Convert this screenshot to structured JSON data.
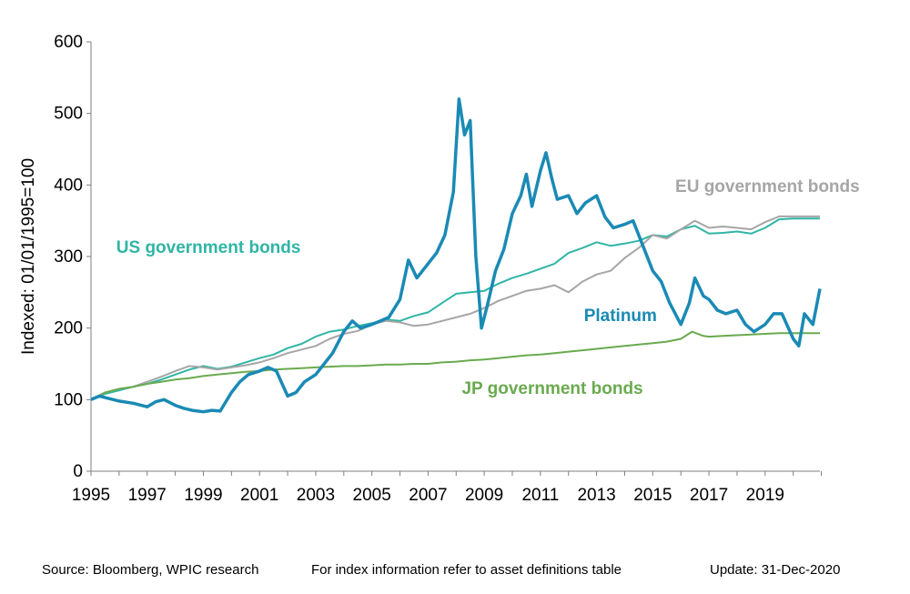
{
  "chart_data": {
    "type": "line",
    "title": "",
    "xlabel": "",
    "ylabel": "Indexed: 01/01/1995=100",
    "xlim": [
      1995,
      2020.95
    ],
    "ylim": [
      0,
      600
    ],
    "x_ticks": [
      "1995",
      "1997",
      "1999",
      "2001",
      "2003",
      "2005",
      "2007",
      "2009",
      "2011",
      "2013",
      "2015",
      "2017",
      "2019"
    ],
    "y_ticks": [
      "0",
      "100",
      "200",
      "300",
      "400",
      "500",
      "600"
    ],
    "grid": false,
    "legend": "direct labels",
    "series": [
      {
        "name": "US government bonds",
        "color": "#2fb5a5",
        "points": [
          [
            1995,
            100
          ],
          [
            1995.5,
            108
          ],
          [
            1996,
            113
          ],
          [
            1996.5,
            118
          ],
          [
            1997,
            122
          ],
          [
            1997.5,
            128
          ],
          [
            1998,
            135
          ],
          [
            1998.5,
            142
          ],
          [
            1999,
            147
          ],
          [
            1999.5,
            143
          ],
          [
            2000,
            146
          ],
          [
            2000.5,
            152
          ],
          [
            2001,
            158
          ],
          [
            2001.5,
            163
          ],
          [
            2002,
            172
          ],
          [
            2002.5,
            178
          ],
          [
            2003,
            188
          ],
          [
            2003.5,
            195
          ],
          [
            2004,
            198
          ],
          [
            2004.5,
            203
          ],
          [
            2005,
            207
          ],
          [
            2005.5,
            212
          ],
          [
            2006,
            210
          ],
          [
            2006.5,
            217
          ],
          [
            2007,
            222
          ],
          [
            2007.5,
            235
          ],
          [
            2008,
            248
          ],
          [
            2008.5,
            250
          ],
          [
            2009,
            252
          ],
          [
            2009.5,
            262
          ],
          [
            2010,
            270
          ],
          [
            2010.5,
            276
          ],
          [
            2011,
            283
          ],
          [
            2011.5,
            290
          ],
          [
            2012,
            305
          ],
          [
            2012.5,
            312
          ],
          [
            2013,
            320
          ],
          [
            2013.5,
            315
          ],
          [
            2014,
            318
          ],
          [
            2014.5,
            322
          ],
          [
            2015,
            330
          ],
          [
            2015.5,
            328
          ],
          [
            2016,
            338
          ],
          [
            2016.5,
            343
          ],
          [
            2017,
            332
          ],
          [
            2017.5,
            333
          ],
          [
            2018,
            335
          ],
          [
            2018.5,
            332
          ],
          [
            2019,
            340
          ],
          [
            2019.5,
            352
          ],
          [
            2020,
            353
          ],
          [
            2020.95,
            353
          ]
        ]
      },
      {
        "name": "EU government bonds",
        "color": "#a6a6a6",
        "points": [
          [
            1995,
            100
          ],
          [
            1995.5,
            110
          ],
          [
            1996,
            115
          ],
          [
            1996.5,
            118
          ],
          [
            1997,
            125
          ],
          [
            1997.5,
            132
          ],
          [
            1998,
            140
          ],
          [
            1998.5,
            147
          ],
          [
            1999,
            145
          ],
          [
            1999.5,
            142
          ],
          [
            2000,
            145
          ],
          [
            2000.5,
            148
          ],
          [
            2001,
            152
          ],
          [
            2001.5,
            158
          ],
          [
            2002,
            165
          ],
          [
            2002.5,
            170
          ],
          [
            2003,
            175
          ],
          [
            2003.5,
            185
          ],
          [
            2004,
            192
          ],
          [
            2004.5,
            196
          ],
          [
            2005,
            205
          ],
          [
            2005.5,
            210
          ],
          [
            2006,
            208
          ],
          [
            2006.5,
            203
          ],
          [
            2007,
            205
          ],
          [
            2007.5,
            210
          ],
          [
            2008,
            215
          ],
          [
            2008.5,
            220
          ],
          [
            2009,
            228
          ],
          [
            2009.5,
            238
          ],
          [
            2010,
            245
          ],
          [
            2010.5,
            252
          ],
          [
            2011,
            255
          ],
          [
            2011.5,
            260
          ],
          [
            2012,
            250
          ],
          [
            2012.5,
            265
          ],
          [
            2013,
            275
          ],
          [
            2013.5,
            280
          ],
          [
            2014,
            298
          ],
          [
            2014.5,
            312
          ],
          [
            2015,
            330
          ],
          [
            2015.5,
            325
          ],
          [
            2016,
            338
          ],
          [
            2016.5,
            350
          ],
          [
            2017,
            340
          ],
          [
            2017.5,
            342
          ],
          [
            2018,
            340
          ],
          [
            2018.5,
            338
          ],
          [
            2019,
            348
          ],
          [
            2019.5,
            356
          ],
          [
            2020,
            356
          ],
          [
            2020.95,
            356
          ]
        ]
      },
      {
        "name": "JP government bonds",
        "color": "#6aaa4f",
        "points": [
          [
            1995,
            100
          ],
          [
            1995.5,
            110
          ],
          [
            1996,
            115
          ],
          [
            1996.5,
            118
          ],
          [
            1997,
            122
          ],
          [
            1997.5,
            125
          ],
          [
            1998,
            128
          ],
          [
            1998.5,
            130
          ],
          [
            1999,
            133
          ],
          [
            1999.5,
            135
          ],
          [
            2000,
            137
          ],
          [
            2000.5,
            139
          ],
          [
            2001,
            140
          ],
          [
            2001.5,
            142
          ],
          [
            2002,
            143
          ],
          [
            2002.5,
            144
          ],
          [
            2003,
            145
          ],
          [
            2003.5,
            146
          ],
          [
            2004,
            147
          ],
          [
            2004.5,
            147
          ],
          [
            2005,
            148
          ],
          [
            2005.5,
            149
          ],
          [
            2006,
            149
          ],
          [
            2006.5,
            150
          ],
          [
            2007,
            150
          ],
          [
            2007.5,
            152
          ],
          [
            2008,
            153
          ],
          [
            2008.5,
            155
          ],
          [
            2009,
            156
          ],
          [
            2009.5,
            158
          ],
          [
            2010,
            160
          ],
          [
            2010.5,
            162
          ],
          [
            2011,
            163
          ],
          [
            2011.5,
            165
          ],
          [
            2012,
            167
          ],
          [
            2012.5,
            169
          ],
          [
            2013,
            171
          ],
          [
            2013.5,
            173
          ],
          [
            2014,
            175
          ],
          [
            2014.5,
            177
          ],
          [
            2015,
            179
          ],
          [
            2015.5,
            181
          ],
          [
            2016,
            185
          ],
          [
            2016.4,
            195
          ],
          [
            2016.8,
            189
          ],
          [
            2017,
            188
          ],
          [
            2017.5,
            189
          ],
          [
            2018,
            190
          ],
          [
            2018.5,
            191
          ],
          [
            2019,
            192
          ],
          [
            2019.5,
            193
          ],
          [
            2020,
            193
          ],
          [
            2020.95,
            193
          ]
        ]
      },
      {
        "name": "Platinum",
        "color": "#1a8ab5",
        "points": [
          [
            1995,
            100
          ],
          [
            1995.3,
            105
          ],
          [
            1995.6,
            102
          ],
          [
            1996,
            98
          ],
          [
            1996.5,
            95
          ],
          [
            1997,
            90
          ],
          [
            1997.3,
            97
          ],
          [
            1997.6,
            100
          ],
          [
            1998,
            92
          ],
          [
            1998.3,
            88
          ],
          [
            1998.6,
            85
          ],
          [
            1999,
            83
          ],
          [
            1999.3,
            85
          ],
          [
            1999.6,
            84
          ],
          [
            2000,
            110
          ],
          [
            2000.3,
            125
          ],
          [
            2000.6,
            135
          ],
          [
            2001,
            140
          ],
          [
            2001.3,
            145
          ],
          [
            2001.6,
            140
          ],
          [
            2002,
            105
          ],
          [
            2002.3,
            110
          ],
          [
            2002.6,
            125
          ],
          [
            2003,
            135
          ],
          [
            2003.3,
            150
          ],
          [
            2003.6,
            165
          ],
          [
            2004,
            195
          ],
          [
            2004.3,
            210
          ],
          [
            2004.6,
            200
          ],
          [
            2005,
            205
          ],
          [
            2005.3,
            210
          ],
          [
            2005.6,
            215
          ],
          [
            2006,
            240
          ],
          [
            2006.3,
            295
          ],
          [
            2006.6,
            270
          ],
          [
            2007,
            290
          ],
          [
            2007.3,
            305
          ],
          [
            2007.6,
            330
          ],
          [
            2007.9,
            390
          ],
          [
            2008.1,
            520
          ],
          [
            2008.3,
            470
          ],
          [
            2008.5,
            490
          ],
          [
            2008.7,
            300
          ],
          [
            2008.9,
            200
          ],
          [
            2009.1,
            230
          ],
          [
            2009.4,
            280
          ],
          [
            2009.7,
            310
          ],
          [
            2010,
            360
          ],
          [
            2010.3,
            385
          ],
          [
            2010.5,
            415
          ],
          [
            2010.7,
            370
          ],
          [
            2011,
            420
          ],
          [
            2011.2,
            445
          ],
          [
            2011.4,
            410
          ],
          [
            2011.6,
            380
          ],
          [
            2012,
            385
          ],
          [
            2012.3,
            360
          ],
          [
            2012.6,
            375
          ],
          [
            2013,
            385
          ],
          [
            2013.3,
            355
          ],
          [
            2013.6,
            340
          ],
          [
            2014,
            345
          ],
          [
            2014.3,
            350
          ],
          [
            2014.6,
            320
          ],
          [
            2015,
            280
          ],
          [
            2015.3,
            265
          ],
          [
            2015.6,
            235
          ],
          [
            2016,
            205
          ],
          [
            2016.3,
            235
          ],
          [
            2016.5,
            270
          ],
          [
            2016.8,
            245
          ],
          [
            2017,
            240
          ],
          [
            2017.3,
            225
          ],
          [
            2017.6,
            220
          ],
          [
            2018,
            225
          ],
          [
            2018.3,
            205
          ],
          [
            2018.6,
            195
          ],
          [
            2019,
            205
          ],
          [
            2019.3,
            220
          ],
          [
            2019.6,
            220
          ],
          [
            2020,
            185
          ],
          [
            2020.2,
            175
          ],
          [
            2020.4,
            220
          ],
          [
            2020.7,
            205
          ],
          [
            2020.95,
            255
          ]
        ]
      }
    ],
    "annotations": [
      {
        "text": "US government bonds",
        "color": "#2fb5a5",
        "x": 1995.9,
        "y": 305
      },
      {
        "text": "EU government bonds",
        "color": "#a6a6a6",
        "x": 2015.8,
        "y": 390
      },
      {
        "text": "Platinum",
        "color": "#1a8ab5",
        "x": 2012.55,
        "y": 210
      },
      {
        "text": "JP government bonds",
        "color": "#6aaa4f",
        "x": 2008.2,
        "y": 108
      }
    ]
  },
  "footer": {
    "source": "Source: Bloomberg, WPIC research",
    "note": "For index information refer to asset definitions table",
    "update": "Update: 31-Dec-2020"
  }
}
